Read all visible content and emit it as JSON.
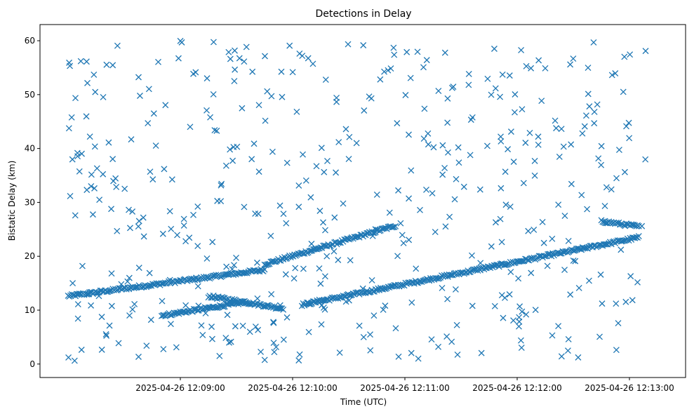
{
  "chart_data": {
    "type": "scatter",
    "title": "Detections in Delay",
    "xlabel": "Time (UTC)",
    "ylabel": "Bistatic Delay (km)",
    "x_ticks": [
      "2025-04-26 12:09:00",
      "2025-04-26 12:10:00",
      "2025-04-26 12:11:00",
      "2025-04-26 12:12:00",
      "2025-04-26 12:13:00"
    ],
    "y_ticks": [
      "0",
      "10",
      "20",
      "30",
      "40",
      "50",
      "60"
    ],
    "xlim": [
      "2025-04-26 12:07:45",
      "2025-04-26 12:13:30"
    ],
    "ylim": [
      -2.5,
      63
    ],
    "marker": "x",
    "color": "#1f77b4",
    "grid": false,
    "series": [
      {
        "tracks": [
          {
            "start": "2025-04-26 12:08:00",
            "end": "2025-04-26 12:09:45",
            "y0": 12.6,
            "y1": 17.5
          },
          {
            "start": "2025-04-26 12:09:45",
            "end": "2025-04-26 12:10:55",
            "y0": 18.5,
            "y1": 25.7
          },
          {
            "start": "2025-04-26 12:08:50",
            "end": "2025-04-26 12:09:35",
            "y0": 9.0,
            "y1": 11.5
          },
          {
            "start": "2025-04-26 12:09:15",
            "end": "2025-04-26 12:09:55",
            "y0": 12.6,
            "y1": 10.3
          },
          {
            "start": "2025-04-26 12:10:05",
            "end": "2025-04-26 12:13:05",
            "y0": 11.0,
            "y1": 23.5
          },
          {
            "start": "2025-04-26 12:12:45",
            "end": "2025-04-26 12:13:05",
            "y0": 26.5,
            "y1": 25.5
          }
        ],
        "clutter": {
          "count": 470,
          "y_range": [
            0.5,
            60
          ],
          "x_range": [
            "2025-04-26 12:08:00",
            "2025-04-26 12:13:10"
          ]
        }
      }
    ]
  }
}
